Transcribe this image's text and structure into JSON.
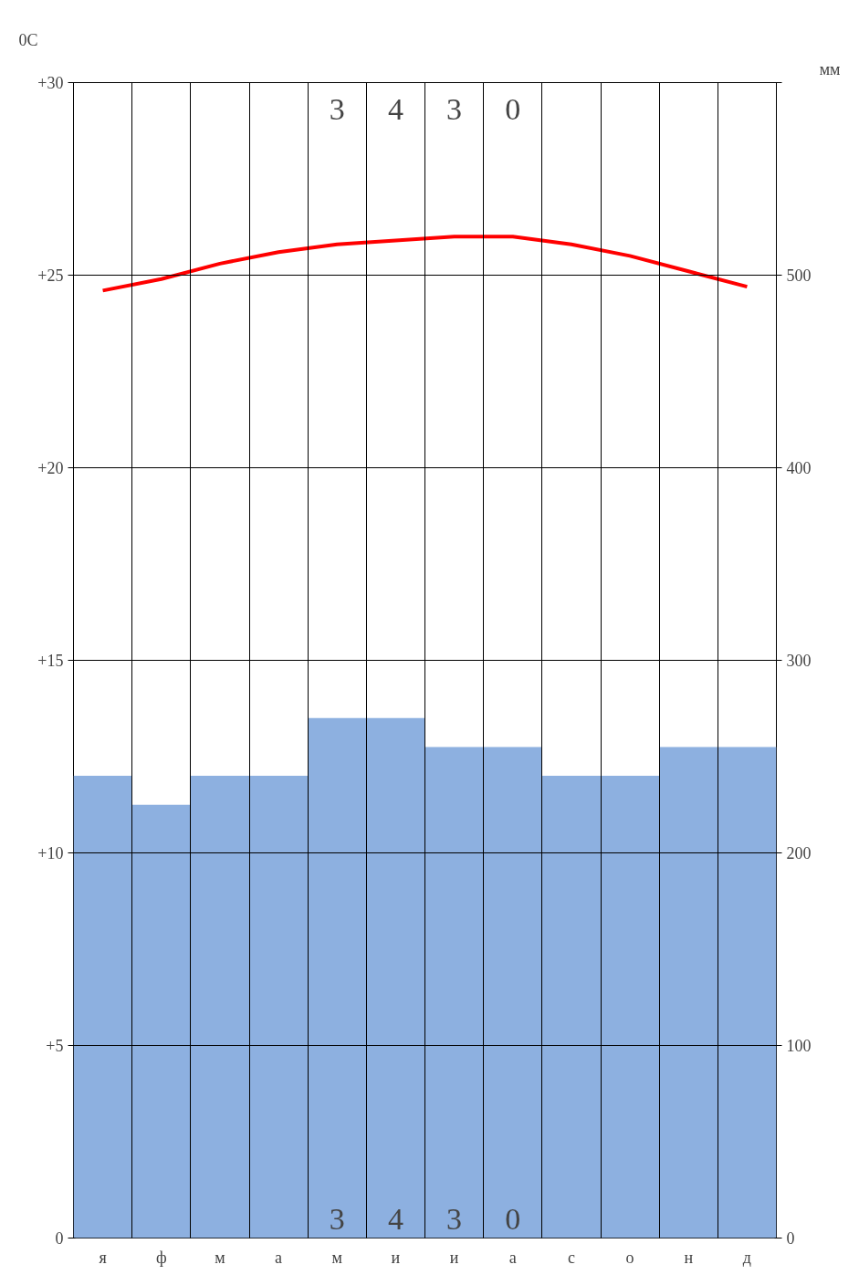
{
  "chart_data": {
    "type": "bar",
    "ylabel": "0C",
    "y2label": "мм",
    "categories": [
      "я",
      "ф",
      "м",
      "а",
      "м",
      "и",
      "и",
      "а",
      "с",
      "о",
      "н",
      "д"
    ],
    "series": [
      {
        "axis": "y2",
        "color": "#8db0e0",
        "values": [
          240,
          225,
          240,
          240,
          270,
          270,
          255,
          255,
          240,
          240,
          255,
          255
        ]
      },
      {
        "type": "line",
        "axis": "y",
        "color": "#ff0000",
        "values": [
          24.6,
          24.9,
          25.3,
          25.6,
          25.8,
          25.9,
          26.0,
          26.0,
          25.8,
          25.5,
          25.1,
          24.7
        ]
      }
    ],
    "ylim": [
      0,
      30
    ],
    "yticks": [
      0,
      {
        "value": 5,
        "label": "+5"
      },
      {
        "value": 10,
        "label": "+10"
      },
      {
        "value": 15,
        "label": "+15"
      },
      {
        "value": 20,
        "label": "+20"
      },
      {
        "value": 25,
        "label": "+25"
      },
      {
        "value": 30,
        "label": "+30"
      }
    ],
    "y2lim": [
      0,
      600
    ],
    "y2ticks": [
      0,
      100,
      200,
      300,
      400,
      500,
      {
        "value": 600,
        "label": null
      }
    ],
    "annotations": [
      "3 4 3 0",
      "3 4 3 0"
    ],
    "grid": true,
    "marker": "none",
    "line_style": "solid"
  }
}
